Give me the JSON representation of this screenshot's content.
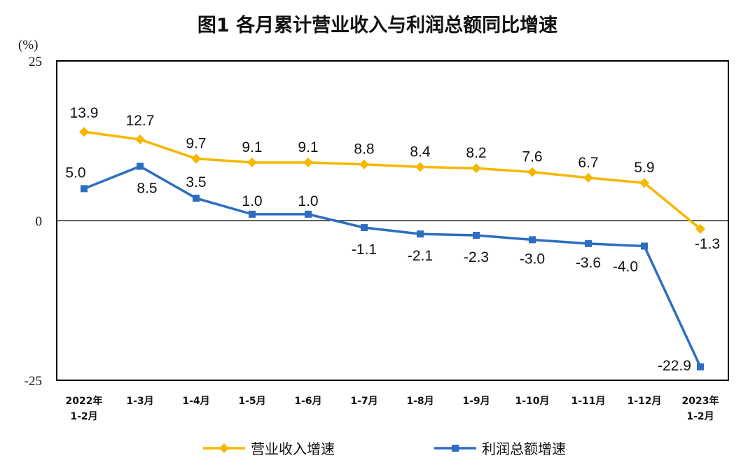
{
  "chart_data": {
    "type": "line",
    "title": "图1  各月累计营业收入与利润总额同比增速",
    "ylabel": "(%)",
    "ylim": [
      -25,
      25
    ],
    "yticks": [
      "25",
      "0",
      "-25"
    ],
    "categories": [
      [
        "2022年",
        "1-2月"
      ],
      [
        "1-3月"
      ],
      [
        "1-4月"
      ],
      [
        "1-5月"
      ],
      [
        "1-6月"
      ],
      [
        "1-7月"
      ],
      [
        "1-8月"
      ],
      [
        "1-9月"
      ],
      [
        "1-10月"
      ],
      [
        "1-11月"
      ],
      [
        "1-12月"
      ],
      [
        "2023年",
        "1-2月"
      ]
    ],
    "series": [
      {
        "name": "营业收入增速",
        "color": "#F5B800",
        "marker": "diamond",
        "values": [
          13.9,
          12.7,
          9.7,
          9.1,
          9.1,
          8.8,
          8.4,
          8.2,
          7.6,
          6.7,
          5.9,
          -1.3
        ]
      },
      {
        "name": "利润总额增速",
        "color": "#2E6EC0",
        "marker": "square",
        "values": [
          5.0,
          8.5,
          3.5,
          1.0,
          1.0,
          -1.1,
          -2.1,
          -2.3,
          -3.0,
          -3.6,
          -4.0,
          -22.9
        ]
      }
    ],
    "grid": false,
    "legend": "bottom"
  }
}
